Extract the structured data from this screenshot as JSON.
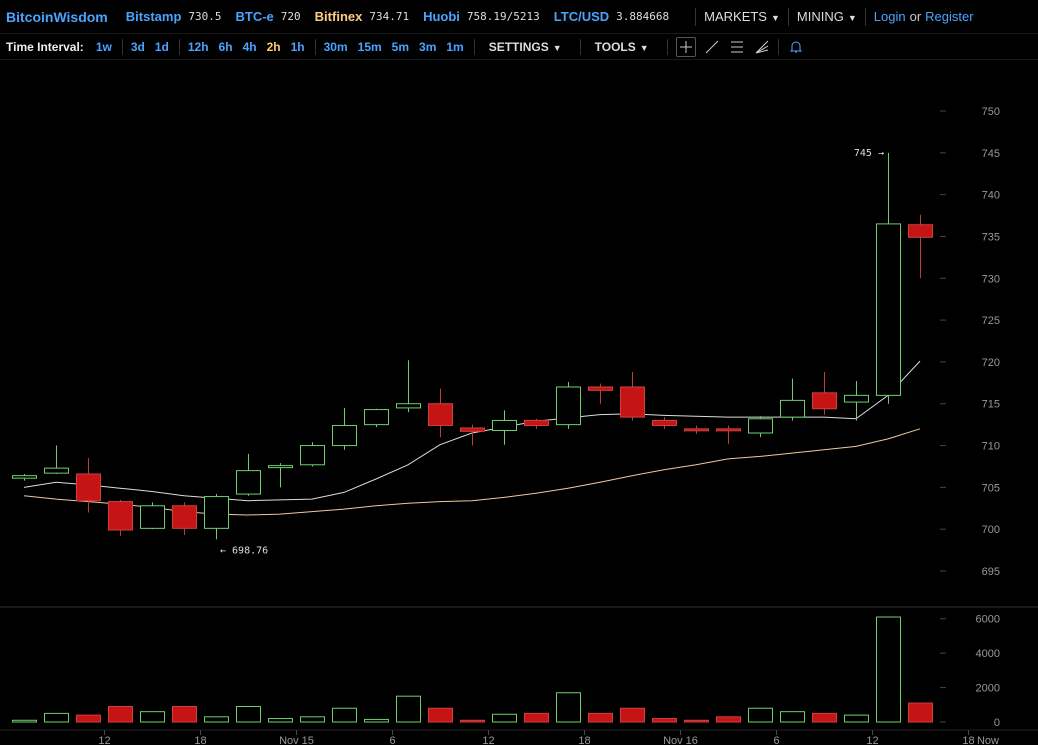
{
  "header": {
    "brand": "BitcoinWisdom",
    "exchanges": [
      {
        "name": "Bitstamp",
        "price": "730.5",
        "color": "#4aa3ff"
      },
      {
        "name": "BTC-e",
        "price": "720",
        "color": "#4aa3ff"
      },
      {
        "name": "Bitfinex",
        "price": "734.71",
        "color": "#ffcc88"
      },
      {
        "name": "Huobi",
        "price": "758.19/5213",
        "color": "#4aa3ff"
      },
      {
        "name": "LTC/USD",
        "price": "3.884668",
        "color": "#4aa3ff"
      }
    ],
    "markets_label": "MARKETS",
    "mining_label": "MINING",
    "login_label": "Login",
    "or_label": "or",
    "register_label": "Register"
  },
  "toolbar": {
    "time_interval_label": "Time Interval:",
    "intervals": [
      "1w",
      "3d",
      "1d",
      "12h",
      "6h",
      "4h",
      "2h",
      "1h",
      "30m",
      "15m",
      "5m",
      "3m",
      "1m"
    ],
    "active_interval": "2h",
    "settings_label": "SETTINGS",
    "tools_label": "TOOLS",
    "icons": [
      "crosshair-icon",
      "line-tool-icon",
      "fib-lines-icon",
      "fan-tool-icon",
      "alert-bell-icon"
    ]
  },
  "chart_data": {
    "type": "candlestick",
    "y_ticks": [
      695,
      700,
      705,
      710,
      715,
      720,
      725,
      730,
      735,
      740,
      745,
      750
    ],
    "ylim": [
      692,
      752
    ],
    "volume_ticks": [
      0,
      2000,
      4000,
      6000
    ],
    "volume_lim": [
      0,
      6200
    ],
    "x_tick_labels": [
      {
        "i": 2.5,
        "label": "12"
      },
      {
        "i": 5.5,
        "label": "18"
      },
      {
        "i": 8.5,
        "label": "Nov 15"
      },
      {
        "i": 11.5,
        "label": "6"
      },
      {
        "i": 14.5,
        "label": "12"
      },
      {
        "i": 17.5,
        "label": "18"
      },
      {
        "i": 20.5,
        "label": "Nov 16"
      },
      {
        "i": 23.5,
        "label": "6"
      },
      {
        "i": 26.5,
        "label": "12"
      },
      {
        "i": 29.5,
        "label": "18"
      }
    ],
    "now_label": "Now",
    "high_marker": {
      "i": 27,
      "value": 745,
      "label": "745 →"
    },
    "low_marker": {
      "i": 6,
      "value": 698.76,
      "label": "← 698.76"
    },
    "up_color": "#6fcf6f",
    "down_color": "#c41414",
    "ma_fast_color": "#dddddd",
    "ma_slow_color": "#f0c8a0",
    "candles": [
      {
        "o": 706.1,
        "h": 706.6,
        "l": 705.8,
        "c": 706.4,
        "v": 100
      },
      {
        "o": 706.7,
        "h": 710.0,
        "l": 706.6,
        "c": 707.3,
        "v": 500
      },
      {
        "o": 706.6,
        "h": 708.5,
        "l": 702.0,
        "c": 703.4,
        "v": 400
      },
      {
        "o": 703.3,
        "h": 703.5,
        "l": 699.2,
        "c": 699.9,
        "v": 900
      },
      {
        "o": 700.1,
        "h": 703.2,
        "l": 700.0,
        "c": 702.8,
        "v": 600
      },
      {
        "o": 702.8,
        "h": 703.2,
        "l": 699.3,
        "c": 700.1,
        "v": 900
      },
      {
        "o": 700.1,
        "h": 704.2,
        "l": 698.8,
        "c": 703.9,
        "v": 300
      },
      {
        "o": 704.2,
        "h": 709.0,
        "l": 704.0,
        "c": 707.0,
        "v": 900
      },
      {
        "o": 707.4,
        "h": 707.9,
        "l": 705.0,
        "c": 707.6,
        "v": 200
      },
      {
        "o": 707.7,
        "h": 710.4,
        "l": 707.5,
        "c": 710.0,
        "v": 300
      },
      {
        "o": 710.0,
        "h": 714.5,
        "l": 709.5,
        "c": 712.4,
        "v": 800
      },
      {
        "o": 712.5,
        "h": 714.4,
        "l": 712.2,
        "c": 714.3,
        "v": 150
      },
      {
        "o": 714.5,
        "h": 720.2,
        "l": 714.0,
        "c": 715.0,
        "v": 1500
      },
      {
        "o": 715.0,
        "h": 716.8,
        "l": 711.0,
        "c": 712.4,
        "v": 800
      },
      {
        "o": 712.1,
        "h": 712.5,
        "l": 710.0,
        "c": 711.7,
        "v": 100
      },
      {
        "o": 711.8,
        "h": 714.2,
        "l": 710.1,
        "c": 713.0,
        "v": 450
      },
      {
        "o": 713.0,
        "h": 713.2,
        "l": 712.0,
        "c": 712.4,
        "v": 500
      },
      {
        "o": 712.5,
        "h": 717.6,
        "l": 712.0,
        "c": 717.0,
        "v": 1700
      },
      {
        "o": 717.0,
        "h": 717.4,
        "l": 715.0,
        "c": 716.6,
        "v": 500
      },
      {
        "o": 717.0,
        "h": 718.8,
        "l": 713.0,
        "c": 713.4,
        "v": 800
      },
      {
        "o": 713.0,
        "h": 713.4,
        "l": 712.0,
        "c": 712.4,
        "v": 200
      },
      {
        "o": 712.0,
        "h": 712.4,
        "l": 711.4,
        "c": 711.9,
        "v": 100
      },
      {
        "o": 712.0,
        "h": 712.4,
        "l": 710.2,
        "c": 711.9,
        "v": 300
      },
      {
        "o": 711.5,
        "h": 713.5,
        "l": 711.0,
        "c": 713.2,
        "v": 800
      },
      {
        "o": 713.4,
        "h": 718.0,
        "l": 713.0,
        "c": 715.4,
        "v": 600
      },
      {
        "o": 716.3,
        "h": 718.8,
        "l": 713.7,
        "c": 714.4,
        "v": 500
      },
      {
        "o": 715.2,
        "h": 717.7,
        "l": 713.0,
        "c": 716.0,
        "v": 400
      },
      {
        "o": 716.0,
        "h": 745.0,
        "l": 715.0,
        "c": 736.5,
        "v": 6100
      },
      {
        "o": 736.4,
        "h": 737.6,
        "l": 730.0,
        "c": 734.9,
        "v": 1100
      }
    ],
    "ma_fast": [
      705.0,
      705.6,
      705.3,
      704.9,
      704.5,
      704.0,
      703.7,
      703.4,
      703.5,
      703.6,
      704.4,
      706.0,
      707.7,
      710.1,
      711.5,
      712.2,
      712.9,
      713.3,
      713.7,
      713.8,
      713.6,
      713.5,
      713.4,
      713.4,
      713.4,
      713.4,
      713.2,
      716.0,
      720.1
    ],
    "ma_slow": [
      704.0,
      703.6,
      703.3,
      703.0,
      702.6,
      702.1,
      701.8,
      701.7,
      701.8,
      702.1,
      702.4,
      702.8,
      703.1,
      703.3,
      703.4,
      703.8,
      704.3,
      704.9,
      705.6,
      706.4,
      707.1,
      707.7,
      708.4,
      708.7,
      709.1,
      709.5,
      709.9,
      710.8,
      712.0
    ]
  }
}
